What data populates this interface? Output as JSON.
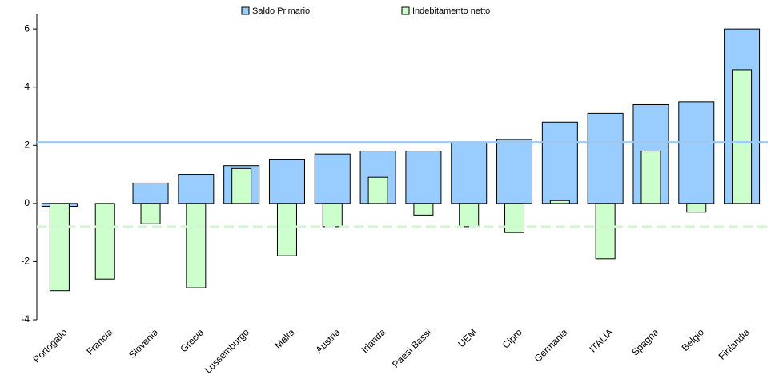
{
  "chart_data": {
    "type": "bar",
    "categories": [
      "Portogallo",
      "Francia",
      "Slovenia",
      "Grecia",
      "Lussemburgo",
      "Malta",
      "Austria",
      "Irlanda",
      "Paesi Bassi",
      "UEM",
      "Cipro",
      "Germania",
      "ITALIA",
      "Spagna",
      "Belgio",
      "Finlandia"
    ],
    "series": [
      {
        "name": "Saldo Primario",
        "color": "#99ccff",
        "values": [
          -0.1,
          0,
          0.7,
          1.0,
          1.3,
          1.5,
          1.7,
          1.8,
          1.8,
          2.1,
          2.2,
          2.8,
          3.1,
          3.4,
          3.5,
          6.0
        ]
      },
      {
        "name": "Indebitamento netto",
        "color": "#ccffcc",
        "values": [
          -3.0,
          -2.6,
          -0.7,
          -2.9,
          1.2,
          -1.8,
          -0.8,
          0.9,
          -0.4,
          -0.8,
          -1.0,
          0.1,
          -1.9,
          1.8,
          -0.3,
          4.6
        ]
      }
    ],
    "reference_lines": [
      {
        "value": 2.1,
        "color": "#9fc8f0",
        "style": "solid"
      },
      {
        "value": -0.8,
        "color": "#d4f5d4",
        "style": "dashed"
      }
    ],
    "ylim": [
      -4,
      6.5
    ],
    "yticks": [
      -4,
      -2,
      0,
      2,
      4,
      6
    ],
    "legend": "top"
  }
}
